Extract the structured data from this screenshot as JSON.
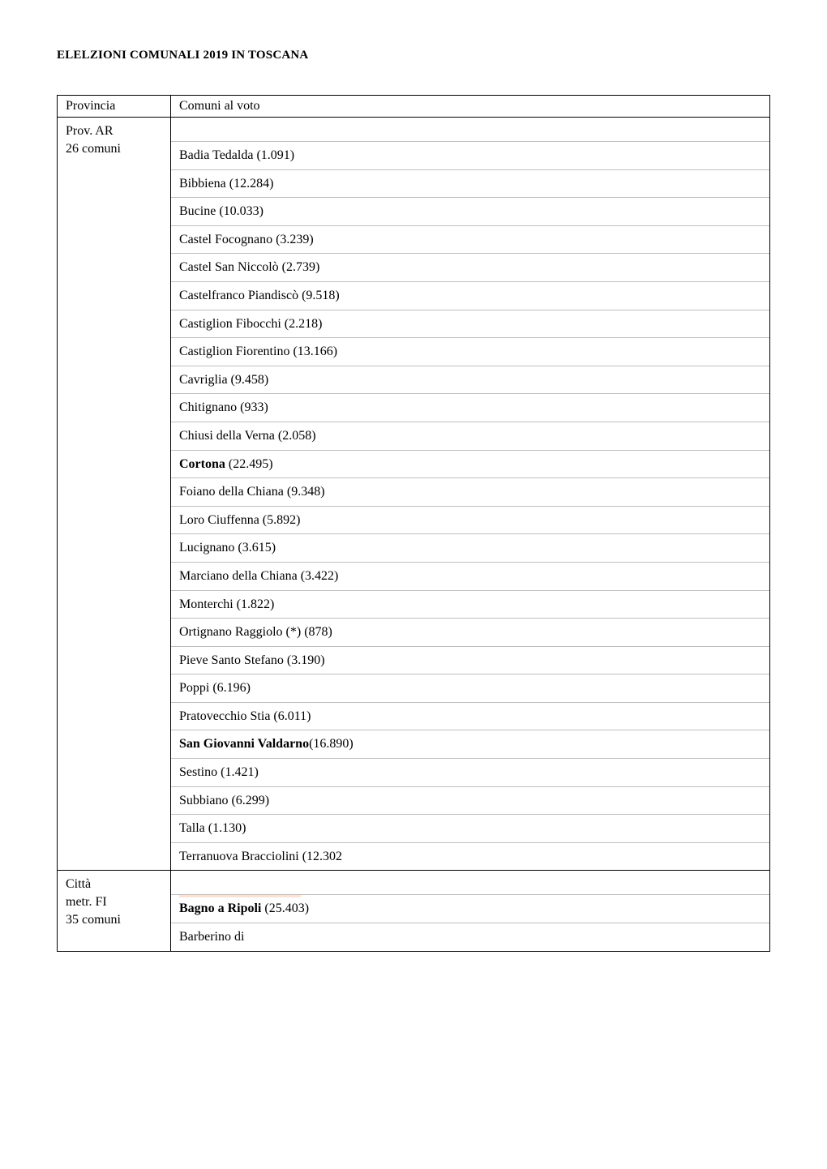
{
  "title": "ELELZIONI COMUNALI 2019 IN TOSCANA",
  "header": {
    "provincia": "Provincia",
    "comuni": "Comuni al voto"
  },
  "sections": [
    {
      "prov_lines": [
        "Prov. AR",
        "26 comuni"
      ],
      "show_leading_spacer": true,
      "top_mark": false,
      "rows": [
        {
          "text": "Badia Tedalda (1.091)",
          "bold": false
        },
        {
          "text": "Bibbiena (12.284)",
          "bold": false
        },
        {
          "text": "Bucine (10.033)",
          "bold": false
        },
        {
          "text": "Castel Focognano (3.239)",
          "bold": false
        },
        {
          "text": "Castel San Niccolò (2.739)",
          "bold": false
        },
        {
          "text": "Castelfranco Piandiscò (9.518)",
          "bold": false
        },
        {
          "text": "Castiglion Fibocchi (2.218)",
          "bold": false
        },
        {
          "text": "Castiglion Fiorentino (13.166)",
          "bold": false
        },
        {
          "text": "Cavriglia (9.458)",
          "bold": false
        },
        {
          "text": "Chitignano (933)",
          "bold": false
        },
        {
          "text": "Chiusi della Verna (2.058)",
          "bold": false
        },
        {
          "text_parts": [
            {
              "t": "Cortona",
              "bold": true
            },
            {
              "t": " (22.495)",
              "bold": false
            }
          ]
        },
        {
          "text": "Foiano della Chiana (9.348)",
          "bold": false
        },
        {
          "text": "Loro Ciuffenna (5.892)",
          "bold": false
        },
        {
          "text": "Lucignano (3.615)",
          "bold": false
        },
        {
          "text": "Marciano della Chiana (3.422)",
          "bold": false
        },
        {
          "text": "Monterchi (1.822)",
          "bold": false
        },
        {
          "text": "Ortignano Raggiolo (*) (878)",
          "bold": false
        },
        {
          "text": "Pieve Santo Stefano (3.190)",
          "bold": false
        },
        {
          "text": "Poppi (6.196)",
          "bold": false
        },
        {
          "text": "Pratovecchio Stia (6.011)",
          "bold": false
        },
        {
          "text_parts": [
            {
              "t": "San Giovanni Valdarno",
              "bold": true
            },
            {
              "t": "(16.890)",
              "bold": false
            }
          ]
        },
        {
          "text": "Sestino (1.421)",
          "bold": false
        },
        {
          "text": "Subbiano (6.299)",
          "bold": false
        },
        {
          "text": "Talla (1.130)",
          "bold": false
        },
        {
          "text": "Terranuova Bracciolini (12.302",
          "bold": false
        }
      ]
    },
    {
      "prov_lines": [
        "Città",
        "metr. FI",
        "35 comuni"
      ],
      "show_leading_spacer": true,
      "top_mark": true,
      "rows": [
        {
          "text_parts": [
            {
              "t": "Bagno a Ripoli",
              "bold": true
            },
            {
              "t": " (25.403)",
              "bold": false
            }
          ]
        },
        {
          "text": "Barberino di",
          "bold": false
        }
      ]
    }
  ]
}
